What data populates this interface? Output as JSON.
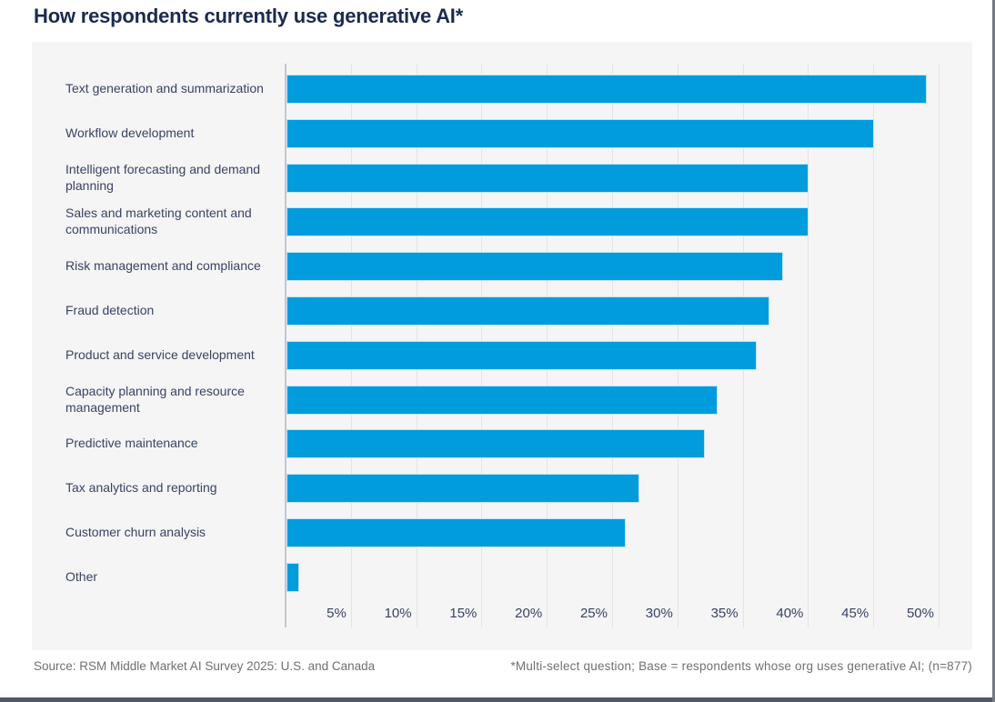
{
  "title": "How respondents currently use generative AI*",
  "chart_data": {
    "type": "bar",
    "orientation": "horizontal",
    "title": "How respondents currently use generative AI*",
    "categories": [
      "Text generation and summarization",
      "Workflow development",
      "Intelligent forecasting and demand planning",
      "Sales and marketing content and communications",
      "Risk management and compliance",
      "Fraud detection",
      "Product and service development",
      "Capacity planning and resource management",
      "Predictive maintenance",
      "Tax analytics and reporting",
      "Customer churn analysis",
      "Other"
    ],
    "values": [
      49,
      45,
      40,
      40,
      38,
      37,
      36,
      33,
      32,
      27,
      26,
      1
    ],
    "unit": "%",
    "xlim": [
      0,
      50
    ],
    "tick_step": 5,
    "x_ticks": [
      "5%",
      "10%",
      "15%",
      "20%",
      "25%",
      "30%",
      "35%",
      "40%",
      "45%",
      "50%"
    ],
    "grid": true,
    "legend": "none",
    "bar_color": "#009CDB"
  },
  "footer": {
    "source": "Source: RSM Middle Market AI Survey 2025: U.S. and Canada",
    "note": "*Multi-select question; Base = respondents whose org uses generative AI; (n=877)"
  },
  "colors": {
    "accent_blue": "#009CDB",
    "navy_title": "#1B2A4E",
    "label_text": "#3A4361",
    "footer_text": "#707070",
    "panel_bg": "#F5F5F6"
  }
}
